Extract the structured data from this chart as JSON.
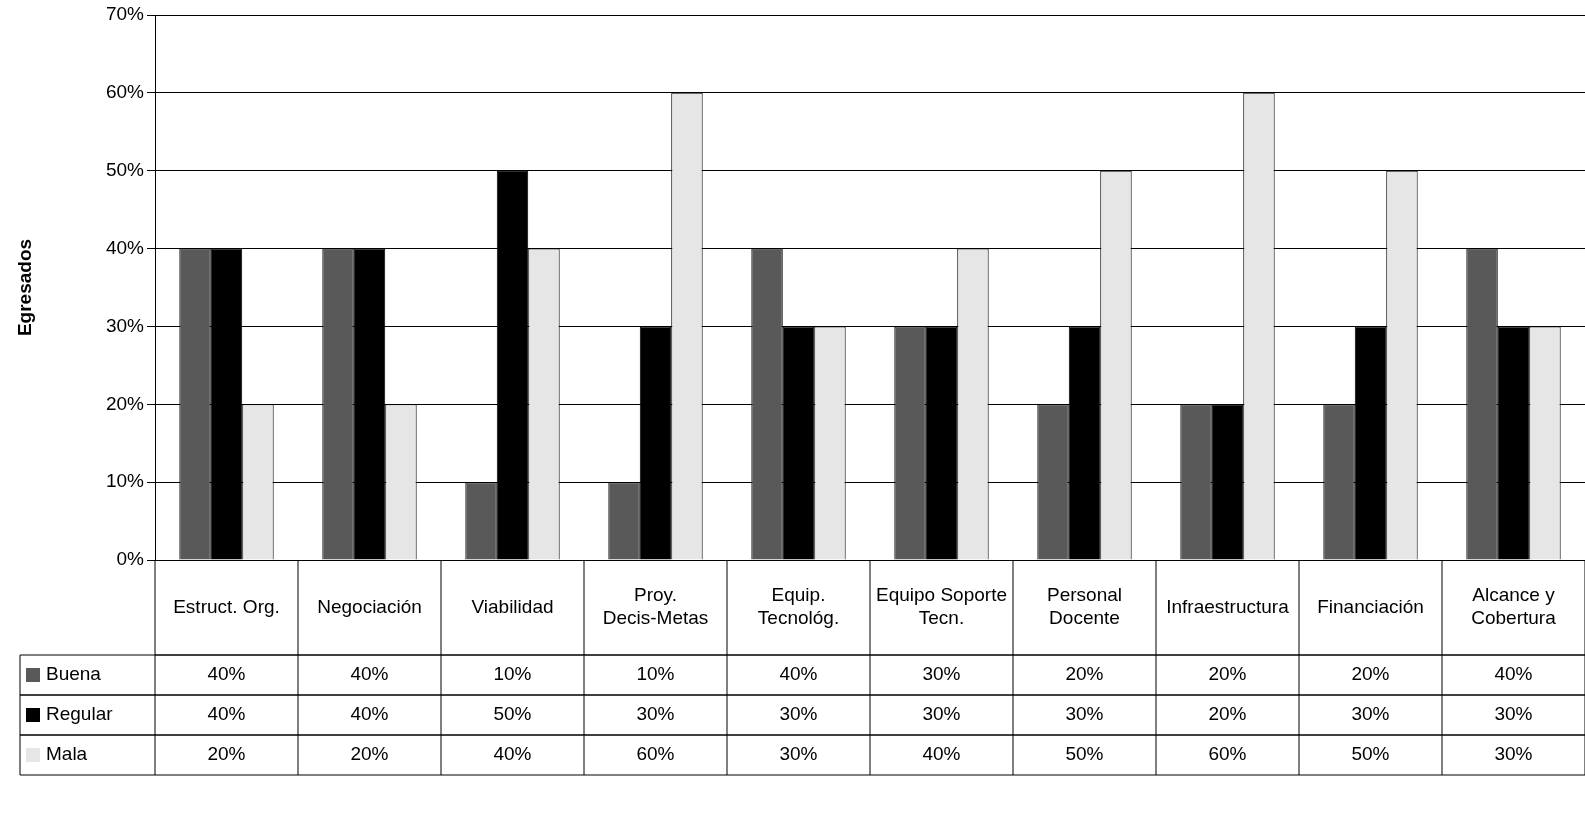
{
  "chart_data": {
    "type": "bar",
    "ylabel": "Egresados",
    "categories": [
      "Estruct. Org.",
      "Negociación",
      "Viabilidad",
      "Proy. Decis-Metas",
      "Equip. Tecnológ.",
      "Equipo Soporte Tecn.",
      "Personal Docente",
      "Infraestructura",
      "Financiación",
      "Alcance y Cobertura"
    ],
    "series": [
      {
        "name": "Buena",
        "color": "#595959",
        "values": [
          40,
          40,
          10,
          10,
          40,
          30,
          20,
          20,
          20,
          40
        ],
        "value_labels": [
          "40%",
          "40%",
          "10%",
          "10%",
          "40%",
          "30%",
          "20%",
          "20%",
          "20%",
          "40%"
        ]
      },
      {
        "name": "Regular",
        "color": "#000000",
        "values": [
          40,
          40,
          50,
          30,
          30,
          30,
          30,
          20,
          30,
          30
        ],
        "value_labels": [
          "40%",
          "40%",
          "50%",
          "30%",
          "30%",
          "30%",
          "30%",
          "20%",
          "30%",
          "30%"
        ]
      },
      {
        "name": "Mala",
        "color": "#e6e6e6",
        "values": [
          20,
          20,
          40,
          60,
          30,
          40,
          50,
          60,
          50,
          30
        ],
        "value_labels": [
          "20%",
          "20%",
          "40%",
          "60%",
          "30%",
          "40%",
          "50%",
          "60%",
          "50%",
          "30%"
        ]
      }
    ],
    "ylim": [
      0,
      70
    ],
    "yticks": [
      {
        "value": 0,
        "label": "0%"
      },
      {
        "value": 10,
        "label": "10%"
      },
      {
        "value": 20,
        "label": "20%"
      },
      {
        "value": 30,
        "label": "30%"
      },
      {
        "value": 40,
        "label": "40%"
      },
      {
        "value": 50,
        "label": "50%"
      },
      {
        "value": 60,
        "label": "60%"
      },
      {
        "value": 70,
        "label": "70%"
      }
    ],
    "grid": "y",
    "legend": "bottom left"
  }
}
